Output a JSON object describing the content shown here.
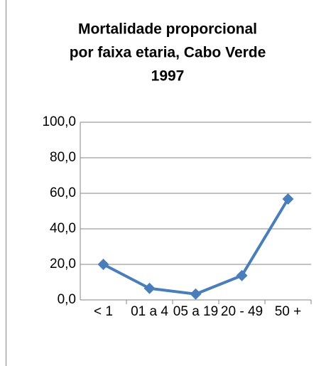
{
  "chart_data": {
    "type": "line",
    "title": [
      "Mortalidade proporcional",
      "por faixa etaria, Cabo Verde",
      "1997"
    ],
    "categories": [
      "< 1",
      "01 a 4",
      "05 a 19",
      "20 - 49",
      "50 +"
    ],
    "series": [
      {
        "name": "Mortalidade proporcional",
        "color": "#4a7ebb",
        "values": [
          20.0,
          6.5,
          3.3,
          13.7,
          56.8
        ]
      }
    ],
    "ylim": [
      0,
      100
    ],
    "yticks": [
      {
        "value": 0,
        "label": "0,0"
      },
      {
        "value": 20,
        "label": "20,0"
      },
      {
        "value": 40,
        "label": "40,0"
      },
      {
        "value": 60,
        "label": "60,0"
      },
      {
        "value": 80,
        "label": "80,0"
      },
      {
        "value": 100,
        "label": "100,0"
      }
    ],
    "grid": true
  }
}
